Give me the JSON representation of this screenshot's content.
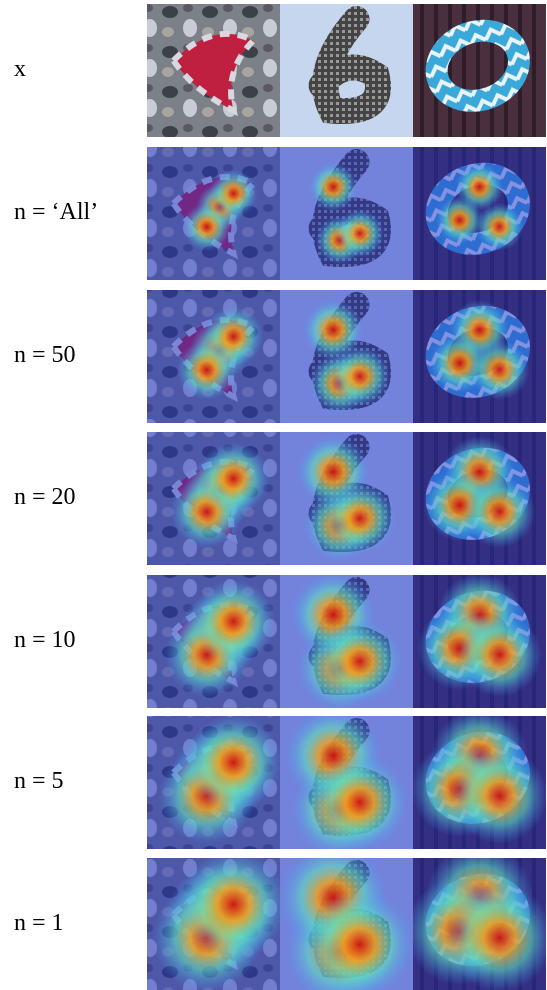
{
  "rows": [
    {
      "label": "x"
    },
    {
      "label": "n = ‘All’"
    },
    {
      "label": "n = 50"
    },
    {
      "label": "n = 20"
    },
    {
      "label": "n = 10"
    },
    {
      "label": "n = 5"
    },
    {
      "label": "n = 1"
    }
  ]
}
